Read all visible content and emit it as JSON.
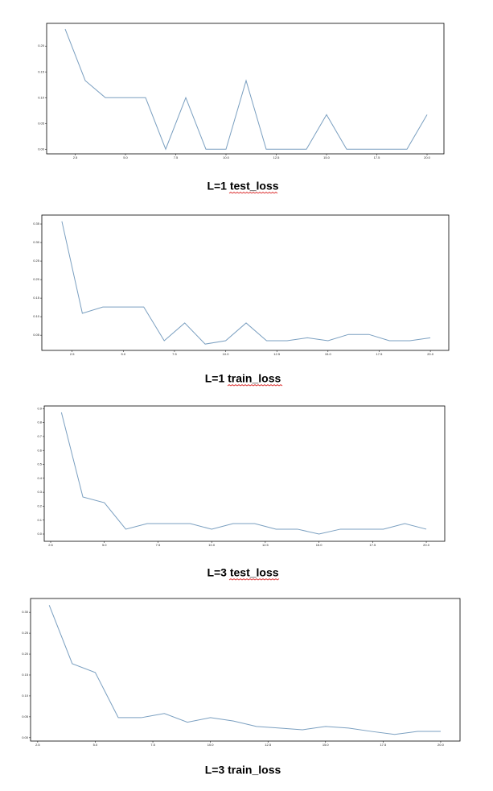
{
  "chart_data": [
    {
      "type": "line",
      "title": "L=1 test_loss",
      "x": [
        2,
        3,
        4,
        5,
        6,
        7,
        8,
        9,
        10,
        11,
        12,
        13,
        14,
        15,
        16,
        17,
        18,
        19,
        20
      ],
      "series": [
        {
          "color": "#7a9fc0",
          "values": [
            0.233,
            0.133,
            0.1,
            0.1,
            0.1,
            0,
            0.1,
            0,
            0,
            0.133,
            0,
            0,
            0,
            0.067,
            0,
            0,
            0,
            0,
            0.067
          ]
        }
      ],
      "xlim": [
        1.08,
        20.84
      ],
      "ylim": [
        -0.009,
        0.244
      ],
      "xticks": [
        2.5,
        {
          "value": 5,
          "label": "5.0"
        },
        7.5,
        {
          "value": 10,
          "label": "10.0"
        },
        12.5,
        {
          "value": 15,
          "label": "15.0"
        },
        17.5,
        {
          "value": 20,
          "label": "20.0"
        }
      ],
      "yticks": [
        {
          "value": 0,
          "label": "0.00"
        },
        0.05,
        {
          "value": 0.1,
          "label": "0.10"
        },
        0.15,
        {
          "value": 0.2,
          "label": "0.20"
        }
      ]
    },
    {
      "type": "line",
      "title": "L=1 train_loss",
      "x": [
        2,
        3,
        4,
        5,
        6,
        7,
        8,
        9,
        10,
        11,
        12,
        13,
        14,
        15,
        16,
        17,
        18,
        19,
        20
      ],
      "series": [
        {
          "color": "#7a9fc0",
          "values": [
            0.357,
            0.109,
            0.126,
            0.126,
            0.126,
            0.035,
            0.083,
            0.026,
            0.035,
            0.083,
            0.035,
            0.035,
            0.043,
            0.035,
            0.052,
            0.052,
            0.035,
            0.035,
            0.043
          ]
        }
      ],
      "xlim": [
        1.02,
        20.9
      ],
      "ylim": [
        0.009,
        0.374
      ],
      "xticks": [
        2.5,
        {
          "value": 5,
          "label": "5.0"
        },
        7.5,
        {
          "value": 10,
          "label": "10.0"
        },
        12.5,
        {
          "value": 15,
          "label": "15.0"
        },
        17.5,
        {
          "value": 20,
          "label": "20.0"
        }
      ],
      "yticks": [
        0.05,
        {
          "value": 0.1,
          "label": "0.10"
        },
        0.15,
        {
          "value": 0.2,
          "label": "0.20"
        },
        0.25,
        {
          "value": 0.3,
          "label": "0.30"
        },
        0.35
      ]
    },
    {
      "type": "line",
      "title": "L=3 test_loss",
      "x": [
        3,
        4,
        5,
        6,
        7,
        8,
        9,
        10,
        11,
        12,
        13,
        14,
        15,
        16,
        17,
        18,
        19,
        20
      ],
      "series": [
        {
          "color": "#7a9fc0",
          "values": [
            0.873,
            0.266,
            0.225,
            0.035,
            0.075,
            0.075,
            0.075,
            0.035,
            0.075,
            0.075,
            0.035,
            0.035,
            0,
            0.035,
            0.035,
            0.035,
            0.075,
            0.035
          ]
        }
      ],
      "xlim": [
        2.2,
        20.86
      ],
      "ylim": [
        -0.052,
        0.919
      ],
      "xticks": [
        2.5,
        {
          "value": 5,
          "label": "5.0"
        },
        7.5,
        {
          "value": 10,
          "label": "10.0"
        },
        12.5,
        {
          "value": 15,
          "label": "15.0"
        },
        17.5,
        {
          "value": 20,
          "label": "20.0"
        }
      ],
      "yticks": [
        {
          "value": 0,
          "label": "0.0"
        },
        0.1,
        0.2,
        0.3,
        0.4,
        0.5,
        0.6,
        0.7,
        0.8,
        0.9
      ]
    },
    {
      "type": "line",
      "title": "L=3 train_loss",
      "x": [
        3,
        4,
        5,
        6,
        7,
        8,
        9,
        10,
        11,
        12,
        13,
        14,
        15,
        16,
        17,
        18,
        19,
        20
      ],
      "series": [
        {
          "color": "#7a9fc0",
          "values": [
            0.317,
            0.177,
            0.156,
            0.048,
            0.048,
            0.058,
            0.037,
            0.048,
            0.04,
            0.027,
            0.023,
            0.019,
            0.027,
            0.023,
            0.015,
            0.008,
            0.015,
            0.015
          ]
        }
      ],
      "xlim": [
        2.19,
        20.84
      ],
      "ylim": [
        -0.008,
        0.333
      ],
      "xticks": [
        2.5,
        {
          "value": 5,
          "label": "5.0"
        },
        7.5,
        {
          "value": 10,
          "label": "10.0"
        },
        12.5,
        {
          "value": 15,
          "label": "15.0"
        },
        17.5,
        {
          "value": 20,
          "label": "20.0"
        }
      ],
      "yticks": [
        {
          "value": 0,
          "label": "0.00"
        },
        0.05,
        {
          "value": 0.1,
          "label": "0.10"
        },
        0.15,
        {
          "value": 0.2,
          "label": "0.20"
        },
        0.25,
        {
          "value": 0.3,
          "label": "0.30"
        }
      ]
    }
  ]
}
